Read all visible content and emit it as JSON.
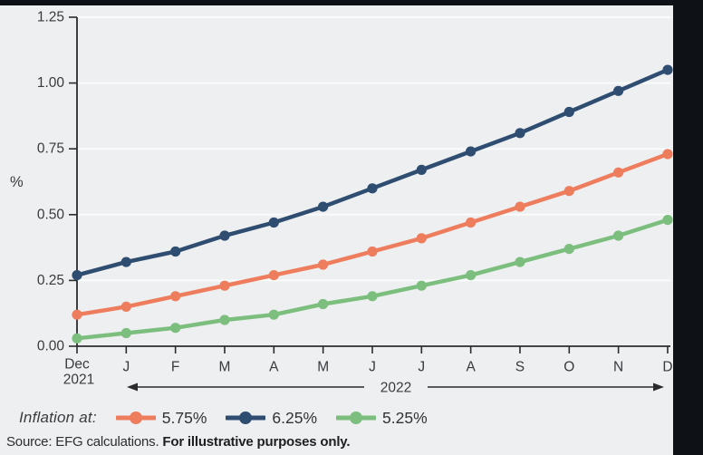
{
  "colors": {
    "frame_dark": "#0E1116",
    "panel_bg": "#EDEFF0",
    "gridline": "#FAFBFB",
    "axis": "#2B2B2E",
    "text": "#3A3A3E"
  },
  "chart_data": {
    "type": "line",
    "title": "",
    "ylabel": "%",
    "xlabel": "",
    "ylim": [
      0,
      1.25
    ],
    "y_ticks": [
      "0.00",
      "0.25",
      "0.50",
      "0.75",
      "1.00",
      "1.25"
    ],
    "grid": "horizontal white gridlines on",
    "legend_position": "bottom",
    "x_labels": [
      "Dec",
      "J",
      "F",
      "M",
      "A",
      "M",
      "J",
      "J",
      "A",
      "S",
      "O",
      "N",
      "D"
    ],
    "x_first_sublabel": "2021",
    "x_year_annotation": "2022",
    "series": [
      {
        "name": "5.75%",
        "color": "#EE7D5E",
        "values": [
          0.12,
          0.15,
          0.19,
          0.23,
          0.27,
          0.31,
          0.36,
          0.41,
          0.47,
          0.53,
          0.59,
          0.66,
          0.73
        ]
      },
      {
        "name": "6.25%",
        "color": "#2F4D70",
        "values": [
          0.27,
          0.32,
          0.36,
          0.42,
          0.47,
          0.53,
          0.6,
          0.67,
          0.74,
          0.81,
          0.89,
          0.97,
          1.05
        ]
      },
      {
        "name": "5.25%",
        "color": "#7CBE7D",
        "values": [
          0.03,
          0.05,
          0.07,
          0.1,
          0.12,
          0.16,
          0.19,
          0.23,
          0.27,
          0.32,
          0.37,
          0.42,
          0.48
        ]
      }
    ]
  },
  "legend": {
    "label": "Inflation at:"
  },
  "source": {
    "normal": "Source: EFG calculations. ",
    "bold": "For illustrative purposes only."
  }
}
